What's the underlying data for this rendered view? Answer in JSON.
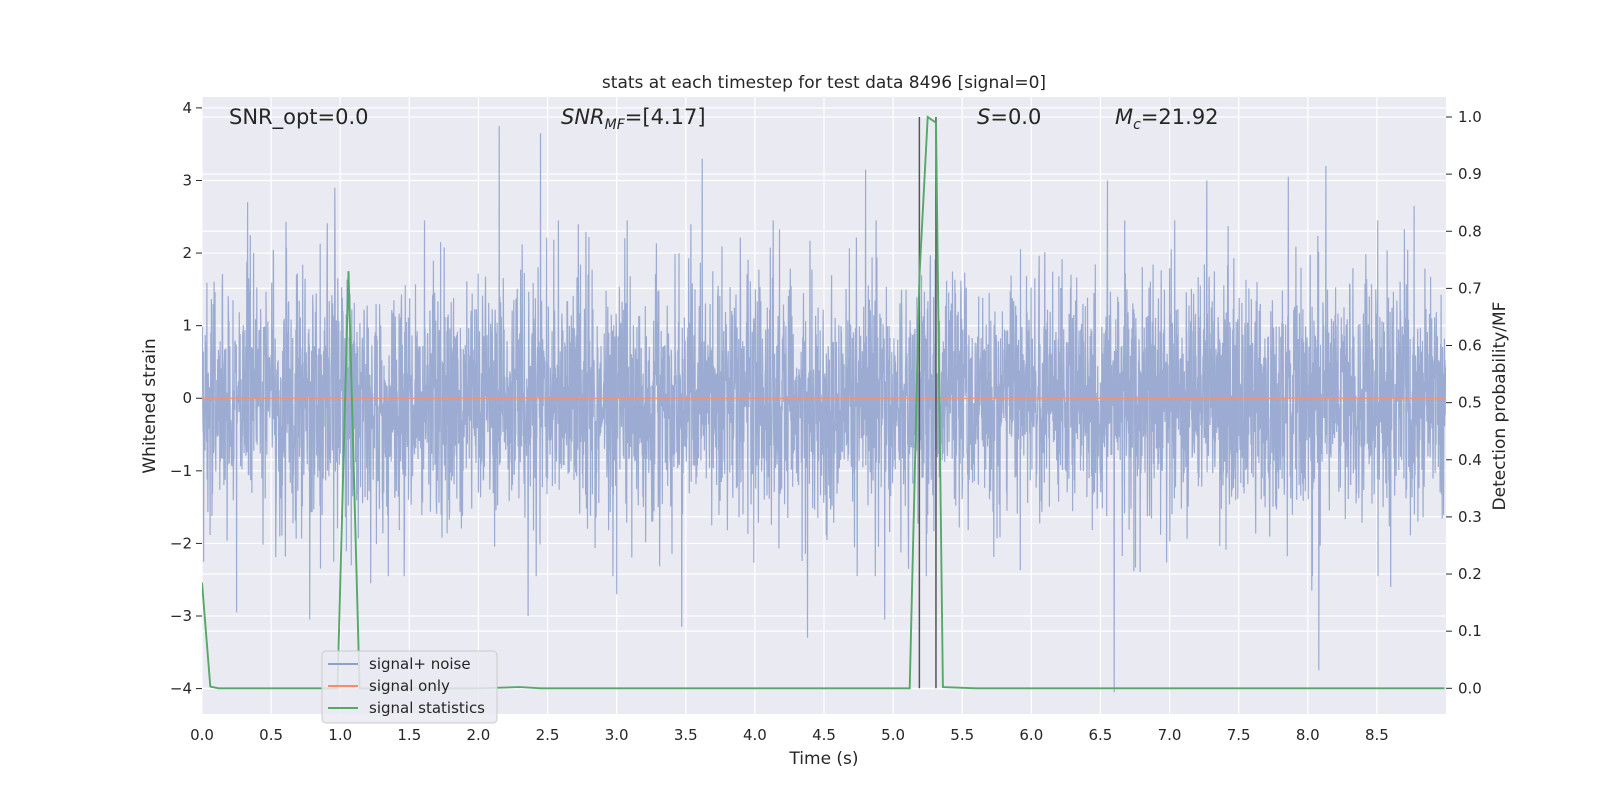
{
  "chart_data": {
    "type": "line",
    "title": "stats at each timestep for test data 8496 [signal=0]",
    "xlabel": "Time (s)",
    "ylabel_left": "Whitened strain",
    "ylabel_right": "Detection probability/MF",
    "xlim": [
      0.0,
      9.0
    ],
    "ylim_left": [
      -4.35,
      4.15
    ],
    "ylim_right": [
      -0.045,
      1.035
    ],
    "x_ticks": [
      "0.0",
      "0.5",
      "1.0",
      "1.5",
      "2.0",
      "2.5",
      "3.0",
      "3.5",
      "4.0",
      "4.5",
      "5.0",
      "5.5",
      "6.0",
      "6.5",
      "7.0",
      "7.5",
      "8.0",
      "8.5"
    ],
    "y_left_ticks": [
      "−4",
      "−3",
      "−2",
      "−1",
      "0",
      "1",
      "2",
      "3",
      "4"
    ],
    "y_right_ticks": [
      "0.0",
      "0.1",
      "0.2",
      "0.3",
      "0.4",
      "0.5",
      "0.6",
      "0.7",
      "0.8",
      "0.9",
      "1.0"
    ],
    "grid": true,
    "legend_position": "lower-left",
    "annotations": {
      "snr_opt": "SNR_opt=0.0",
      "snr_mf_main": "SNR",
      "snr_mf_sub": "MF",
      "snr_mf_rest": "=[4.17]",
      "s_main": "S",
      "s_rest": "=0.0",
      "mc_main": "M",
      "mc_sub": "c",
      "mc_rest": "=21.92"
    },
    "vertical_markers": [
      5.19,
      5.31
    ],
    "series": [
      {
        "name": "signal+ noise",
        "color": "#8da0cb",
        "axis": "left",
        "kind": "noise",
        "sample_rate": 512,
        "std": 0.85,
        "extremes": [
          {
            "x": 0.25,
            "y": -2.95
          },
          {
            "x": 0.33,
            "y": 2.7
          },
          {
            "x": 0.78,
            "y": -3.05
          },
          {
            "x": 0.96,
            "y": 2.9
          },
          {
            "x": 2.15,
            "y": 3.75
          },
          {
            "x": 2.45,
            "y": 3.65
          },
          {
            "x": 2.36,
            "y": -3.0
          },
          {
            "x": 3.0,
            "y": -2.7
          },
          {
            "x": 3.47,
            "y": -3.15
          },
          {
            "x": 3.62,
            "y": 3.3
          },
          {
            "x": 4.38,
            "y": -3.3
          },
          {
            "x": 4.8,
            "y": 3.15
          },
          {
            "x": 4.94,
            "y": -3.05
          },
          {
            "x": 6.6,
            "y": -4.05
          },
          {
            "x": 6.55,
            "y": 3.0
          },
          {
            "x": 7.27,
            "y": 3.0
          },
          {
            "x": 7.86,
            "y": 3.05
          },
          {
            "x": 8.03,
            "y": -2.65
          },
          {
            "x": 8.08,
            "y": -3.75
          },
          {
            "x": 8.13,
            "y": 3.2
          },
          {
            "x": 8.6,
            "y": -2.6
          },
          {
            "x": 8.77,
            "y": 2.65
          },
          {
            "x": 1.08,
            "y": -2.3
          },
          {
            "x": 1.22,
            "y": -2.55
          }
        ]
      },
      {
        "name": "signal only",
        "color": "#fc8d62",
        "axis": "left",
        "x": [
          0.0,
          9.0
        ],
        "y": [
          0.0,
          0.0
        ]
      },
      {
        "name": "signal statistics",
        "color": "#55a868",
        "axis": "right",
        "x": [
          0.0,
          0.06,
          0.12,
          0.5,
          0.98,
          1.06,
          1.14,
          1.3,
          2.0,
          2.3,
          2.45,
          3.0,
          4.0,
          5.0,
          5.12,
          5.19,
          5.25,
          5.31,
          5.36,
          5.6,
          7.0,
          8.99
        ],
        "y": [
          0.185,
          0.003,
          0.0,
          0.0,
          0.0,
          0.73,
          0.0,
          0.0,
          0.0,
          0.002,
          0.0,
          0.0,
          0.0,
          0.0,
          0.0,
          0.72,
          1.0,
          0.99,
          0.002,
          0.0,
          0.0,
          0.0
        ]
      }
    ]
  }
}
